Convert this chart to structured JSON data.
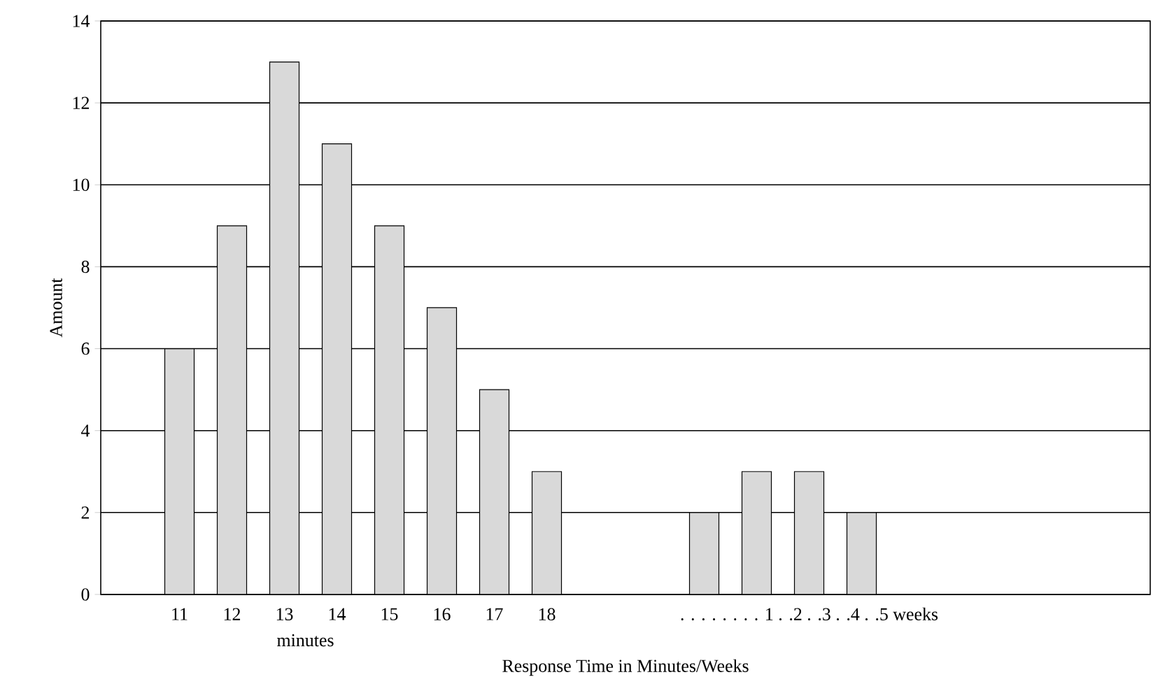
{
  "chart_data": {
    "type": "bar",
    "xlabel": "Response Time in Minutes/Weeks",
    "ylabel": "Amount",
    "categories": [
      null,
      "11",
      "12",
      "13",
      "14",
      "15",
      "16",
      "17",
      "18",
      null,
      null,
      null,
      null,
      null,
      null,
      null,
      null,
      null,
      null,
      null
    ],
    "values": [
      null,
      6,
      9,
      13,
      11,
      9,
      7,
      5,
      3,
      null,
      null,
      2,
      3,
      3,
      2,
      null,
      null,
      null,
      null,
      null
    ],
    "color": "#d9d9d9",
    "ylim": [
      0,
      14
    ],
    "yticks": [
      0,
      2,
      4,
      6,
      8,
      10,
      12,
      14
    ],
    "grid": "y",
    "annotations": [
      "minutes",
      ". . . . . . . . 1 . .2 . .3 . .4 . .5 weeks"
    ]
  }
}
